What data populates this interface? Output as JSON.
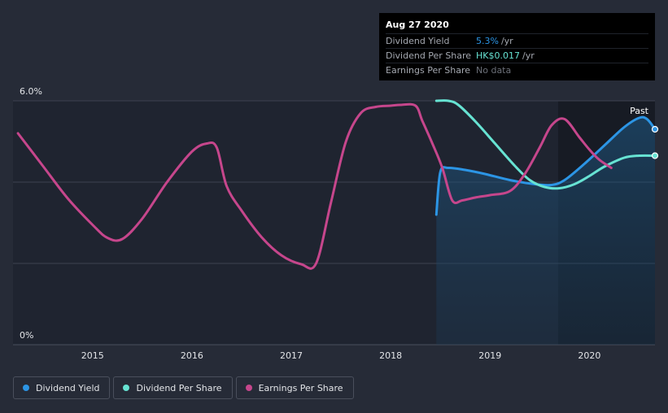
{
  "tooltip": {
    "date": "Aug 27 2020",
    "rows": [
      {
        "label": "Dividend Yield",
        "value": "5.3%",
        "unit": "/yr"
      },
      {
        "label": "Dividend Per Share",
        "value": "HK$0.017",
        "unit": "/yr"
      },
      {
        "label": "Earnings Per Share",
        "value": "No data",
        "unit": ""
      }
    ]
  },
  "past_label": "Past",
  "legend": [
    {
      "label": "Dividend Yield",
      "color": "#2c95e5"
    },
    {
      "label": "Dividend Per Share",
      "color": "#67e3d3"
    },
    {
      "label": "Earnings Per Share",
      "color": "#c6468c"
    }
  ],
  "chart_data": {
    "type": "line",
    "y_tick_labels": [
      "6.0%",
      "0%"
    ],
    "x_tick_labels": [
      "2015",
      "2016",
      "2017",
      "2018",
      "2019",
      "2020"
    ],
    "xlim": [
      2014.2,
      2020.66
    ],
    "ylim": [
      0,
      6.0
    ],
    "grid": true,
    "series": [
      {
        "name": "Dividend Yield",
        "color": "#2c95e5",
        "area": true,
        "points": [
          [
            2018.46,
            3.2
          ],
          [
            2018.5,
            4.25
          ],
          [
            2018.58,
            4.35
          ],
          [
            2018.75,
            4.3
          ],
          [
            2018.95,
            4.2
          ],
          [
            2019.2,
            4.05
          ],
          [
            2019.45,
            3.95
          ],
          [
            2019.62,
            3.93
          ],
          [
            2019.75,
            4.05
          ],
          [
            2019.95,
            4.45
          ],
          [
            2020.15,
            4.9
          ],
          [
            2020.35,
            5.35
          ],
          [
            2020.5,
            5.58
          ],
          [
            2020.58,
            5.55
          ],
          [
            2020.66,
            5.3
          ]
        ]
      },
      {
        "name": "Dividend Per Share",
        "color": "#67e3d3",
        "points": [
          [
            2018.46,
            6.0
          ],
          [
            2018.58,
            6.0
          ],
          [
            2018.68,
            5.9
          ],
          [
            2018.85,
            5.5
          ],
          [
            2019.05,
            4.95
          ],
          [
            2019.25,
            4.4
          ],
          [
            2019.4,
            4.05
          ],
          [
            2019.55,
            3.88
          ],
          [
            2019.7,
            3.85
          ],
          [
            2019.85,
            3.95
          ],
          [
            2020.0,
            4.15
          ],
          [
            2020.15,
            4.38
          ],
          [
            2020.35,
            4.6
          ],
          [
            2020.5,
            4.65
          ],
          [
            2020.66,
            4.65
          ]
        ]
      },
      {
        "name": "Earnings Per Share",
        "color": "#c6468c",
        "points": [
          [
            2014.25,
            5.2
          ],
          [
            2014.5,
            4.4
          ],
          [
            2014.75,
            3.6
          ],
          [
            2015.0,
            2.95
          ],
          [
            2015.15,
            2.63
          ],
          [
            2015.3,
            2.6
          ],
          [
            2015.5,
            3.1
          ],
          [
            2015.75,
            4.0
          ],
          [
            2016.0,
            4.75
          ],
          [
            2016.15,
            4.95
          ],
          [
            2016.25,
            4.85
          ],
          [
            2016.35,
            3.9
          ],
          [
            2016.5,
            3.3
          ],
          [
            2016.7,
            2.65
          ],
          [
            2016.9,
            2.2
          ],
          [
            2017.1,
            1.98
          ],
          [
            2017.25,
            2.0
          ],
          [
            2017.4,
            3.5
          ],
          [
            2017.55,
            5.0
          ],
          [
            2017.7,
            5.7
          ],
          [
            2017.85,
            5.85
          ],
          [
            2018.0,
            5.88
          ],
          [
            2018.1,
            5.9
          ],
          [
            2018.25,
            5.88
          ],
          [
            2018.32,
            5.5
          ],
          [
            2018.42,
            4.95
          ],
          [
            2018.52,
            4.35
          ],
          [
            2018.62,
            3.55
          ],
          [
            2018.72,
            3.55
          ],
          [
            2018.85,
            3.62
          ],
          [
            2019.0,
            3.68
          ],
          [
            2019.2,
            3.78
          ],
          [
            2019.35,
            4.2
          ],
          [
            2019.5,
            4.85
          ],
          [
            2019.62,
            5.4
          ],
          [
            2019.75,
            5.55
          ],
          [
            2019.9,
            5.1
          ],
          [
            2020.0,
            4.8
          ],
          [
            2020.1,
            4.55
          ],
          [
            2020.22,
            4.35
          ]
        ]
      }
    ]
  }
}
